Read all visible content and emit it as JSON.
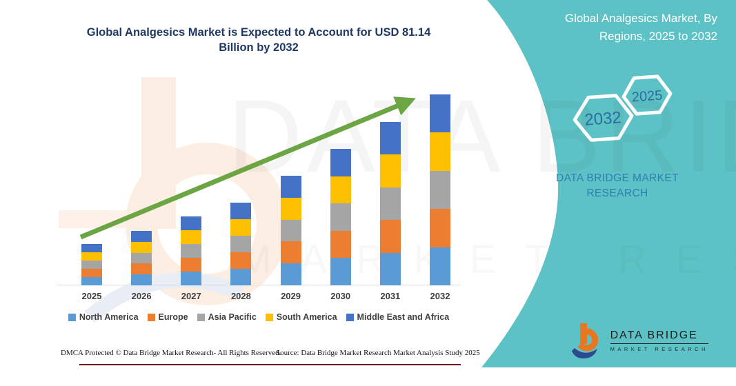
{
  "main": {
    "title_line1": "Global Analgesics Market is Expected to Account for USD 81.14",
    "title_line2": "Billion by 2032"
  },
  "side_panel": {
    "title": "Global Analgesics Market, By Regions, 2025 to 2032",
    "hexagon_labels": [
      "2032",
      "2025"
    ],
    "brand_name": "DATA BRIDGE MARKET RESEARCH",
    "logo_title": "DATA BRIDGE",
    "logo_subtitle": "MARKET RESEARCH",
    "background_color": "#5CC2C5"
  },
  "watermark": {
    "line1": "DATA BRIDGE",
    "line2": "MARKET RESEARCH"
  },
  "chart_data": {
    "type": "bar",
    "stacked": true,
    "title": "Global Analgesics Market, By Regions, 2025 to 2032",
    "unit": "USD Billion",
    "categories": [
      "2025",
      "2026",
      "2027",
      "2028",
      "2029",
      "2030",
      "2031",
      "2032"
    ],
    "totals": [
      17.6,
      23.2,
      29.3,
      35.2,
      46.6,
      58.0,
      69.4,
      81.14
    ],
    "highlight_value": "USD 81.14 Billion by 2032",
    "series": [
      {
        "name": "North America",
        "color": "#5B9BD5",
        "values": [
          3.52,
          4.64,
          5.86,
          7.04,
          9.32,
          11.6,
          13.88,
          16.23
        ]
      },
      {
        "name": "Europe",
        "color": "#ED7D31",
        "values": [
          3.52,
          4.64,
          5.86,
          7.04,
          9.32,
          11.6,
          13.88,
          16.23
        ]
      },
      {
        "name": "Asia Pacific",
        "color": "#A5A5A5",
        "values": [
          3.52,
          4.64,
          5.86,
          7.04,
          9.32,
          11.6,
          13.88,
          16.23
        ]
      },
      {
        "name": "South America",
        "color": "#FFC000",
        "values": [
          3.52,
          4.64,
          5.86,
          7.04,
          9.32,
          11.6,
          13.88,
          16.23
        ]
      },
      {
        "name": "Middle East and Africa",
        "color": "#4472C4",
        "values": [
          3.52,
          4.64,
          5.86,
          7.04,
          9.32,
          11.6,
          13.88,
          16.23
        ]
      }
    ],
    "legend_position": "bottom",
    "gridlines": false,
    "y_axis_visible": false,
    "annotations": {
      "trend_arrow": true,
      "trend_arrow_color": "#6CA644"
    }
  },
  "footer": {
    "dmca": "DMCA Protected © Data Bridge Market Research-  All Rights Reserved.",
    "source": "Source: Data Bridge Market Research  Market Analysis Study 2025"
  },
  "colors": {
    "title_text": "#1F3864",
    "panel_background": "#5CC2C5",
    "panel_title_text": "#FFFFFF",
    "hexagon_outline": "#FFFFFF",
    "hexagon_text": "#2A6DA0",
    "brand_text": "#2E7FB0",
    "axis_line": "#D9D9D9",
    "label_text": "#3F3F3F",
    "footer_rule": "#701B1B"
  }
}
